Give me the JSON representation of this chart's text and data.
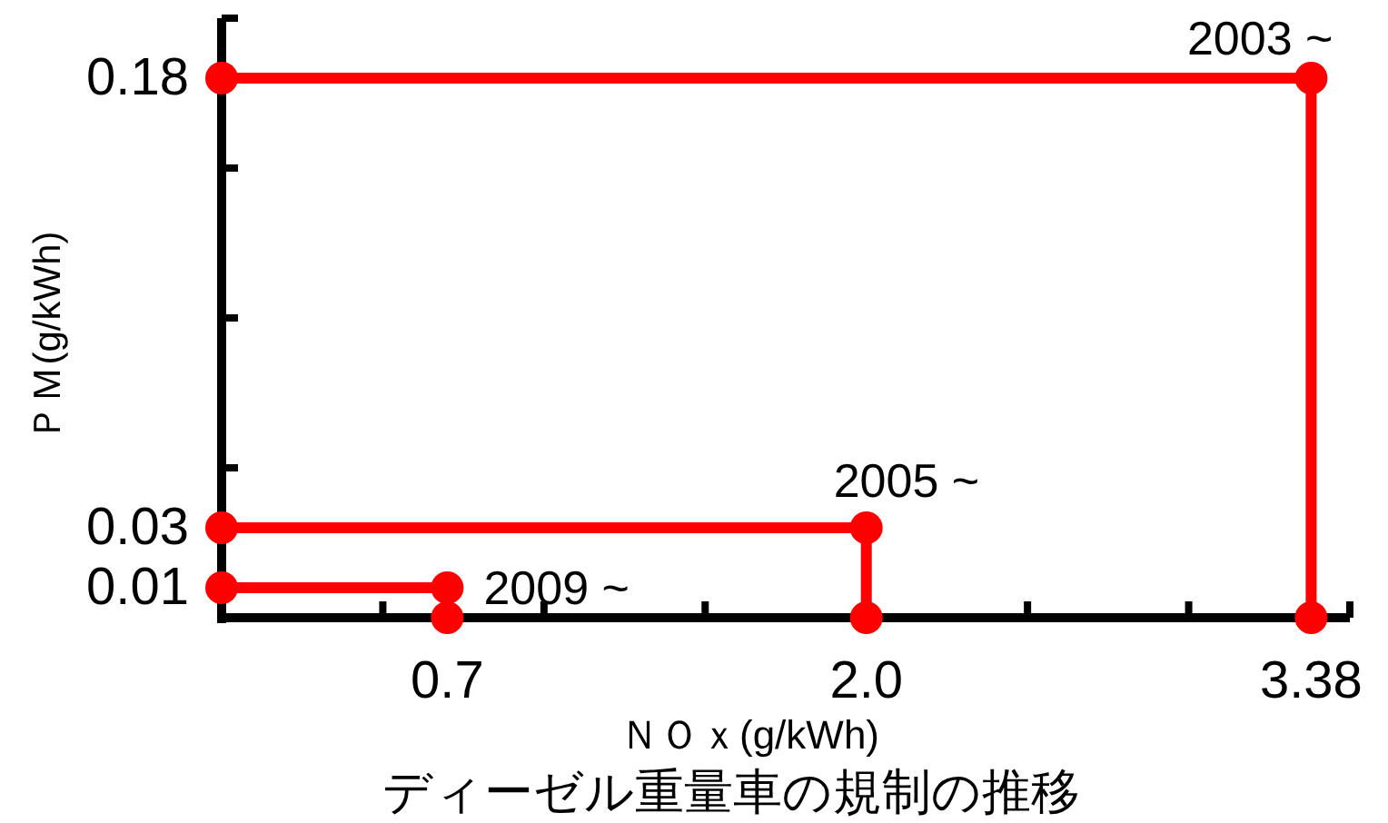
{
  "chart_data": {
    "type": "line",
    "title": "ディーゼル重量車の規制の推移",
    "xlabel": "ＮＯｘ(g/kWh)",
    "ylabel": "ＰＭ(g/kWh)",
    "xlim": [
      0,
      3.5
    ],
    "ylim": [
      0,
      0.2
    ],
    "xticks": [
      {
        "value": 0.5,
        "label": null
      },
      0.7,
      {
        "value": 1.0,
        "label": null
      },
      {
        "value": 1.5,
        "label": null
      },
      {
        "value": 2.0,
        "label": "2.0"
      },
      {
        "value": 2.5,
        "label": null
      },
      {
        "value": 3.0,
        "label": null
      },
      3.38,
      {
        "value": 3.5,
        "label": null
      }
    ],
    "yticks": [
      0.01,
      0.03,
      {
        "value": 0.05,
        "label": null
      },
      {
        "value": 0.1,
        "label": null
      },
      {
        "value": 0.15,
        "label": null
      },
      0.18,
      {
        "value": 0.2,
        "label": null
      }
    ],
    "marker": "circle",
    "line_style": "solid",
    "legend": false,
    "grid": false,
    "series": [
      {
        "name": "2003 ~",
        "color": "#ff0000",
        "x": [
          0,
          3.38,
          3.38
        ],
        "values": [
          0.18,
          0.18,
          0
        ]
      },
      {
        "name": "2005 ~",
        "color": "#ff0000",
        "x": [
          0,
          2.0,
          2.0
        ],
        "values": [
          0.03,
          0.03,
          0
        ]
      },
      {
        "name": "2009 ~",
        "color": "#ff0000",
        "x": [
          0,
          0.7,
          0.7
        ],
        "values": [
          0.01,
          0.01,
          0
        ]
      }
    ]
  }
}
